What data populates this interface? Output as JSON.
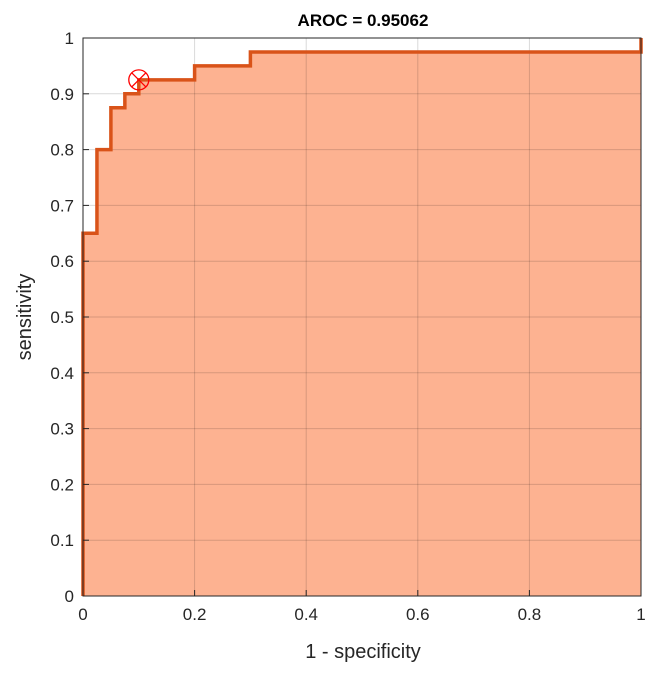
{
  "chart_data": {
    "type": "area",
    "title": "AROC = 0.95062",
    "xlabel": "1 - specificity",
    "ylabel": "sensitivity",
    "xlim": [
      0,
      1
    ],
    "ylim": [
      0,
      1
    ],
    "xticks": [
      0,
      0.2,
      0.4,
      0.6,
      0.8,
      1
    ],
    "xtick_labels": [
      "0",
      "0.2",
      "0.4",
      "0.6",
      "0.8",
      "1"
    ],
    "yticks": [
      0,
      0.1,
      0.2,
      0.3,
      0.4,
      0.5,
      0.6,
      0.7,
      0.8,
      0.9,
      1
    ],
    "ytick_labels": [
      "0",
      "0.1",
      "0.2",
      "0.3",
      "0.4",
      "0.5",
      "0.6",
      "0.7",
      "0.8",
      "0.9",
      "1"
    ],
    "grid": true,
    "series": [
      {
        "x": [
          0,
          0,
          0.025,
          0.025,
          0.05,
          0.05,
          0.075,
          0.075,
          0.1,
          0.1,
          0.2,
          0.2,
          0.3,
          0.3,
          1,
          1
        ],
        "y": [
          0,
          0.65,
          0.65,
          0.8,
          0.8,
          0.875,
          0.875,
          0.9,
          0.9,
          0.925,
          0.925,
          0.95,
          0.95,
          0.975,
          0.975,
          1
        ],
        "line_color": "#d95319",
        "fill_color": "#fdb291"
      }
    ],
    "operating_point": {
      "x": 0.1,
      "y": 0.925,
      "marker": "circle-x",
      "color": "#ff0000"
    }
  }
}
